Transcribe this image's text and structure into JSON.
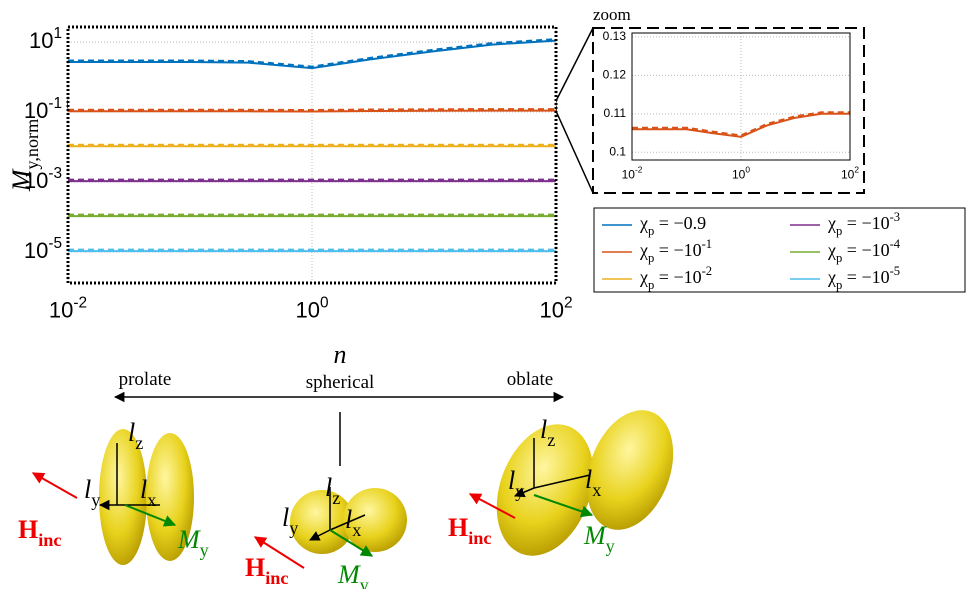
{
  "chart_data": [
    {
      "type": "line",
      "xlabel": "n",
      "ylabel": "M_{y,norm}",
      "xscale": "log",
      "yscale": "log",
      "grid": true,
      "legend": "outside right",
      "xlim": [
        0.01,
        100
      ],
      "ylim": [
        1.3e-06,
        27
      ],
      "xticks": [
        {
          "value": 0.01,
          "label": "10^{-2}"
        },
        {
          "value": 1,
          "label": "10^{0}"
        },
        {
          "value": 100,
          "label": "10^{2}"
        }
      ],
      "yticks": [
        {
          "value": 10,
          "label": "10^{1}"
        },
        {
          "value": 0.1,
          "label": "10^{-1}"
        },
        {
          "value": 0.001,
          "label": "10^{-3}"
        },
        {
          "value": 1e-05,
          "label": "10^{-5}"
        }
      ],
      "x": [
        0.01,
        0.1,
        0.3,
        1,
        3,
        10,
        30,
        100
      ],
      "series": [
        {
          "name": "χ_p = −0.9",
          "color": "#0072BD",
          "values": [
            2.7,
            2.7,
            2.6,
            1.8,
            3.2,
            5.5,
            8.5,
            11
          ]
        },
        {
          "name": "χ_p = −10^{-1}",
          "color": "#D95319",
          "values": [
            0.106,
            0.106,
            0.105,
            0.104,
            0.107,
            0.109,
            0.11,
            0.11
          ]
        },
        {
          "name": "χ_p = −10^{-2}",
          "color": "#EDB120",
          "values": [
            0.0106,
            0.0106,
            0.0106,
            0.0106,
            0.0106,
            0.0106,
            0.0106,
            0.0106
          ]
        },
        {
          "name": "χ_p = −10^{-3}",
          "color": "#7E2F8E",
          "values": [
            0.00106,
            0.00106,
            0.00106,
            0.00106,
            0.00106,
            0.00106,
            0.00106,
            0.00106
          ]
        },
        {
          "name": "χ_p = −10^{-4}",
          "color": "#77AC30",
          "values": [
            0.000106,
            0.000106,
            0.000106,
            0.000106,
            0.000106,
            0.000106,
            0.000106,
            0.000106
          ]
        },
        {
          "name": "χ_p = −10^{-5}",
          "color": "#4DBEEE",
          "values": [
            1.06e-05,
            1.06e-05,
            1.06e-05,
            1.06e-05,
            1.06e-05,
            1.06e-05,
            1.06e-05,
            1.06e-05
          ]
        }
      ]
    },
    {
      "type": "line",
      "title": "zoom",
      "xscale": "log",
      "grid": true,
      "xlim": [
        0.01,
        100
      ],
      "ylim": [
        0.098,
        0.131
      ],
      "xticks": [
        {
          "value": 0.01,
          "label": "10^{-2}"
        },
        {
          "value": 1,
          "label": "10^{0}"
        },
        {
          "value": 100,
          "label": "10^{2}"
        }
      ],
      "yticks": [
        0.1,
        0.11,
        0.12,
        0.13
      ],
      "x": [
        0.01,
        0.1,
        0.3,
        1,
        3,
        10,
        30,
        100
      ],
      "series": [
        {
          "color": "#D95319",
          "values": [
            0.106,
            0.106,
            0.105,
            0.104,
            0.107,
            0.109,
            0.11,
            0.11
          ]
        }
      ]
    }
  ],
  "diagram": {
    "left": "prolate",
    "middle": "spherical",
    "right": "oblate",
    "shapes": [
      {
        "lz": "l_z",
        "ly": "l_y",
        "lx": "l_x",
        "field": "H_{inc}",
        "moment": "M_y"
      },
      {
        "lz": "l_z",
        "ly": "l_y",
        "lx": "l_x",
        "field": "H_{inc}",
        "moment": "M_y"
      },
      {
        "lz": "l_z",
        "ly": "l_y",
        "lx": "l_x",
        "field": "H_{inc}",
        "moment": "M_y"
      }
    ]
  }
}
